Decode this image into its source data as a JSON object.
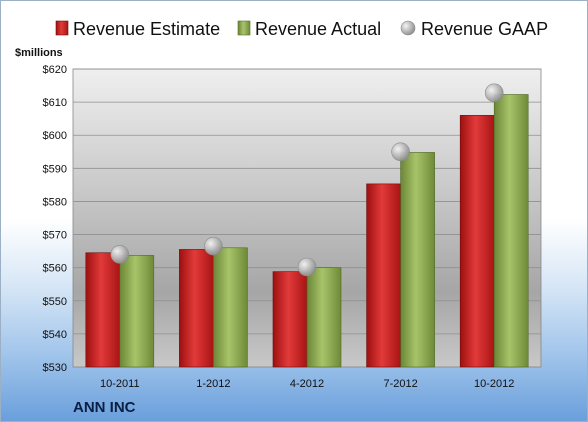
{
  "company": "ANN INC",
  "chart_data": {
    "type": "bar",
    "title": "",
    "ylabel": "$millions",
    "categories": [
      "10-2011",
      "1-2012",
      "4-2012",
      "7-2012",
      "10-2012"
    ],
    "series": [
      {
        "name": "Revenue Estimate",
        "type": "bar",
        "color": "#cc1f1f",
        "values": [
          564.5,
          565.5,
          558.8,
          585.3,
          606.0
        ]
      },
      {
        "name": "Revenue Actual",
        "type": "bar",
        "color": "#8aa84a",
        "values": [
          563.7,
          566.0,
          560.0,
          594.8,
          612.3
        ]
      },
      {
        "name": "Revenue GAAP",
        "type": "marker",
        "color": "#b0b0b0",
        "values": [
          564.0,
          566.5,
          560.2,
          595.0,
          612.8
        ]
      }
    ],
    "ylim": [
      530,
      620
    ],
    "yticks": [
      "$530",
      "$540",
      "$550",
      "$560",
      "$570",
      "$580",
      "$590",
      "$600",
      "$610",
      "$620"
    ],
    "ytick_values": [
      530,
      540,
      550,
      560,
      570,
      580,
      590,
      600,
      610,
      620
    ],
    "grid": true,
    "legend_position": "top"
  }
}
